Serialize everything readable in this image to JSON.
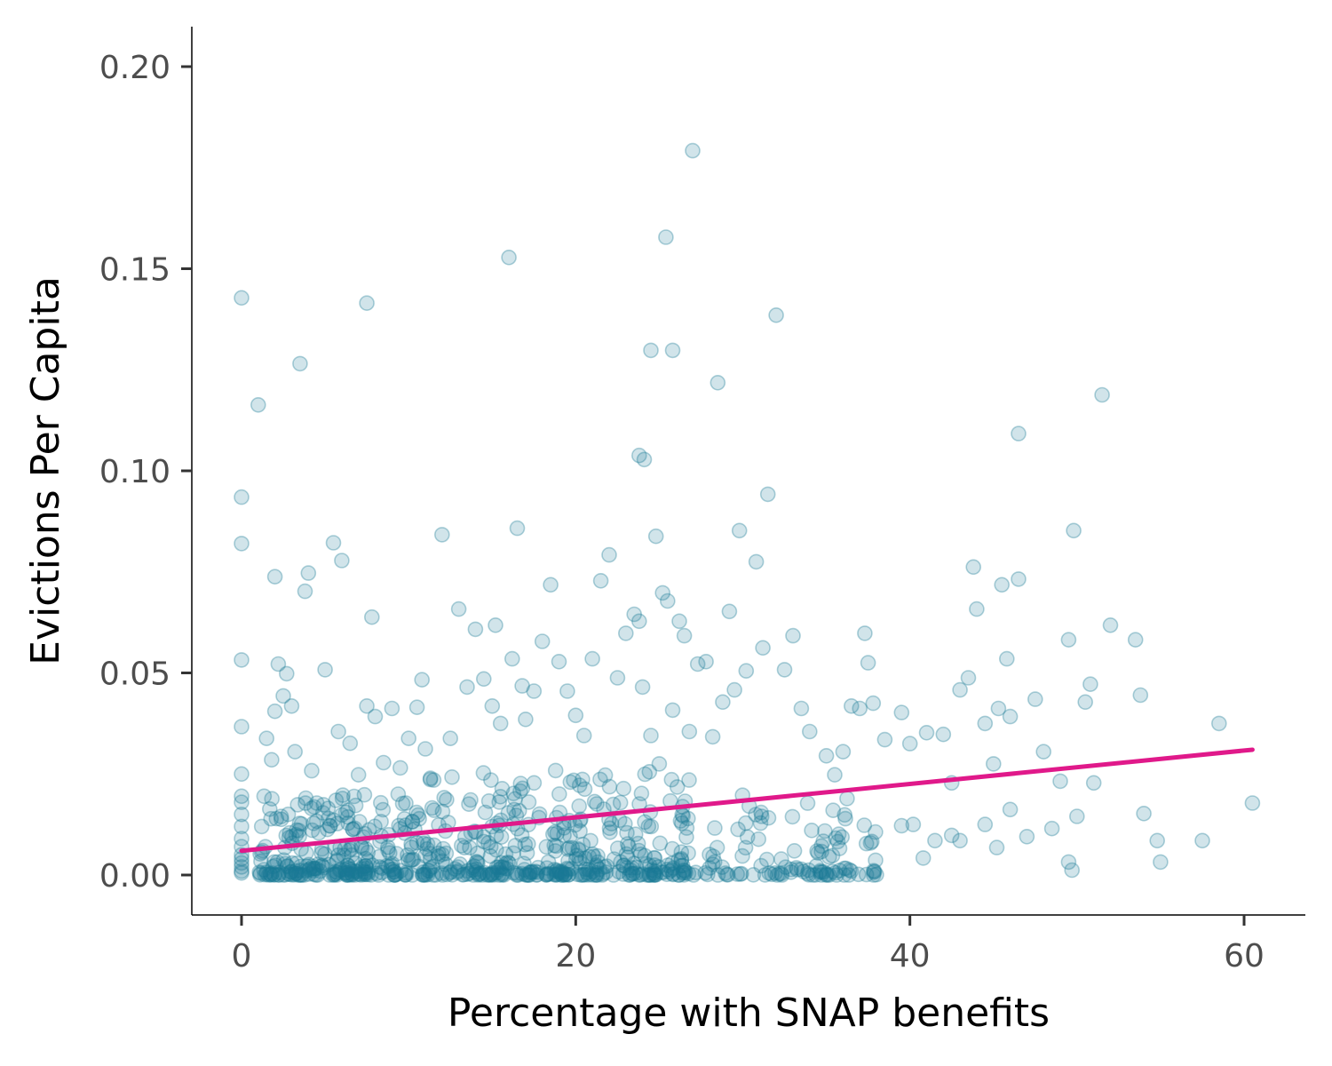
{
  "chart_data": {
    "type": "scatter",
    "title": "",
    "xlabel": "Percentage with SNAP benefits",
    "ylabel": "Evictions Per Capita",
    "xlim": [
      -1.5,
      63
    ],
    "ylim": [
      -0.01,
      0.21
    ],
    "x_ticks": [
      0,
      20,
      40,
      60
    ],
    "x_tick_labels": [
      "0",
      "20",
      "40",
      "60"
    ],
    "y_ticks": [
      0.0,
      0.05,
      0.1,
      0.15,
      0.2
    ],
    "y_tick_labels": [
      "0.00",
      "0.05",
      "0.10",
      "0.15",
      "0.20"
    ],
    "grid": false,
    "legend": "none",
    "point_color": "#1b7a94",
    "point_fill_opacity": 0.2,
    "trend_color": "#e0198a",
    "trend_line": {
      "x": [
        0,
        60.5
      ],
      "y": [
        0.006,
        0.031
      ]
    },
    "series": [
      {
        "values": [
          [
            0,
            0.1428
          ],
          [
            0,
            0.0935
          ],
          [
            0,
            0.082
          ],
          [
            0,
            0.0532
          ],
          [
            0,
            0.0367
          ],
          [
            0,
            0.025
          ],
          [
            0,
            0.0195
          ],
          [
            0,
            0.018
          ],
          [
            0,
            0.015
          ],
          [
            0,
            0.012
          ],
          [
            0,
            0.009
          ],
          [
            0,
            0.007
          ],
          [
            0,
            0.005
          ],
          [
            0,
            0.004
          ],
          [
            0,
            0.003
          ],
          [
            0,
            0.002
          ],
          [
            0,
            0.001
          ],
          [
            0,
            0.0005
          ],
          [
            1.0,
            0.1163
          ],
          [
            1.5,
            0.0338
          ],
          [
            1.8,
            0.0285
          ],
          [
            2.0,
            0.0738
          ],
          [
            2.0,
            0.0405
          ],
          [
            2.2,
            0.0522
          ],
          [
            2.5,
            0.0443
          ],
          [
            2.7,
            0.0498
          ],
          [
            3.0,
            0.0418
          ],
          [
            3.2,
            0.0305
          ],
          [
            3.5,
            0.1265
          ],
          [
            3.8,
            0.0702
          ],
          [
            4.0,
            0.0747
          ],
          [
            4.2,
            0.0258
          ],
          [
            4.5,
            0.0178
          ],
          [
            5.0,
            0.0508
          ],
          [
            5.5,
            0.0822
          ],
          [
            5.8,
            0.0355
          ],
          [
            6.0,
            0.0778
          ],
          [
            6.5,
            0.0326
          ],
          [
            7.0,
            0.0248
          ],
          [
            7.5,
            0.0418
          ],
          [
            8.0,
            0.0392
          ],
          [
            8.5,
            0.0278
          ],
          [
            9.0,
            0.0412
          ],
          [
            7.5,
            0.1415
          ],
          [
            7.8,
            0.0638
          ],
          [
            9.5,
            0.0265
          ],
          [
            10.0,
            0.0338
          ],
          [
            10.5,
            0.0415
          ],
          [
            10.8,
            0.0483
          ],
          [
            11.0,
            0.0312
          ],
          [
            11.5,
            0.0235
          ],
          [
            12.0,
            0.0842
          ],
          [
            12.5,
            0.0338
          ],
          [
            13.0,
            0.0658
          ],
          [
            13.5,
            0.0465
          ],
          [
            14.0,
            0.0608
          ],
          [
            14.5,
            0.0485
          ],
          [
            15.0,
            0.0418
          ],
          [
            15.2,
            0.0618
          ],
          [
            15.5,
            0.0375
          ],
          [
            16.0,
            0.1528
          ],
          [
            16.2,
            0.0535
          ],
          [
            16.5,
            0.0858
          ],
          [
            16.8,
            0.0468
          ],
          [
            17.0,
            0.0385
          ],
          [
            17.5,
            0.0455
          ],
          [
            18.0,
            0.0578
          ],
          [
            18.5,
            0.0718
          ],
          [
            19.0,
            0.0528
          ],
          [
            19.5,
            0.0455
          ],
          [
            20.0,
            0.0395
          ],
          [
            20.5,
            0.0345
          ],
          [
            21.0,
            0.0535
          ],
          [
            21.5,
            0.0728
          ],
          [
            22.0,
            0.0792
          ],
          [
            22.5,
            0.0488
          ],
          [
            23.0,
            0.0598
          ],
          [
            23.5,
            0.0645
          ],
          [
            23.8,
            0.0628
          ],
          [
            24.0,
            0.0465
          ],
          [
            24.5,
            0.0345
          ],
          [
            25.0,
            0.0275
          ],
          [
            23.8,
            0.1038
          ],
          [
            24.1,
            0.1028
          ],
          [
            24.5,
            0.1298
          ],
          [
            24.8,
            0.0838
          ],
          [
            25.2,
            0.0698
          ],
          [
            25.5,
            0.0678
          ],
          [
            25.8,
            0.0408
          ],
          [
            26.2,
            0.0628
          ],
          [
            26.5,
            0.0592
          ],
          [
            26.8,
            0.0355
          ],
          [
            25.4,
            0.1578
          ],
          [
            25.8,
            0.1298
          ],
          [
            27.0,
            0.1792
          ],
          [
            27.3,
            0.0522
          ],
          [
            27.8,
            0.0528
          ],
          [
            28.2,
            0.0342
          ],
          [
            28.5,
            0.1218
          ],
          [
            28.8,
            0.0428
          ],
          [
            29.2,
            0.0652
          ],
          [
            29.5,
            0.0458
          ],
          [
            29.8,
            0.0852
          ],
          [
            30.2,
            0.0505
          ],
          [
            30.8,
            0.0775
          ],
          [
            31.2,
            0.0562
          ],
          [
            31.5,
            0.0942
          ],
          [
            32.0,
            0.1385
          ],
          [
            32.5,
            0.0508
          ],
          [
            33.0,
            0.0592
          ],
          [
            33.5,
            0.0412
          ],
          [
            34.0,
            0.0355
          ],
          [
            35.0,
            0.0295
          ],
          [
            35.5,
            0.0248
          ],
          [
            36.0,
            0.0305
          ],
          [
            36.5,
            0.0418
          ],
          [
            37.0,
            0.0412
          ],
          [
            37.3,
            0.0598
          ],
          [
            37.5,
            0.0525
          ],
          [
            37.8,
            0.0425
          ],
          [
            38.5,
            0.0335
          ],
          [
            39.5,
            0.0402
          ],
          [
            40.0,
            0.0325
          ],
          [
            41.0,
            0.0352
          ],
          [
            42.0,
            0.0348
          ],
          [
            42.5,
            0.0228
          ],
          [
            43.0,
            0.0458
          ],
          [
            43.5,
            0.0488
          ],
          [
            43.8,
            0.0762
          ],
          [
            44.0,
            0.0658
          ],
          [
            44.5,
            0.0375
          ],
          [
            45.0,
            0.0275
          ],
          [
            45.3,
            0.0412
          ],
          [
            45.5,
            0.0718
          ],
          [
            45.8,
            0.0535
          ],
          [
            46.0,
            0.0392
          ],
          [
            46.5,
            0.0732
          ],
          [
            46.5,
            0.1092
          ],
          [
            47.5,
            0.0435
          ],
          [
            48.0,
            0.0305
          ],
          [
            49.0,
            0.0232
          ],
          [
            49.5,
            0.0582
          ],
          [
            49.8,
            0.0852
          ],
          [
            50.5,
            0.0428
          ],
          [
            50.8,
            0.0472
          ],
          [
            51.0,
            0.0228
          ],
          [
            51.5,
            0.1188
          ],
          [
            52.0,
            0.0618
          ],
          [
            53.5,
            0.0582
          ],
          [
            53.8,
            0.0445
          ],
          [
            54.0,
            0.0152
          ],
          [
            55.0,
            0.0032
          ],
          [
            58.5,
            0.0375
          ],
          [
            60.5,
            0.0178
          ],
          [
            39.5,
            0.0122
          ],
          [
            40.2,
            0.0125
          ],
          [
            40.8,
            0.0042
          ],
          [
            41.5,
            0.0085
          ],
          [
            42.5,
            0.0098
          ],
          [
            43.0,
            0.0085
          ],
          [
            44.5,
            0.0125
          ],
          [
            45.2,
            0.0068
          ],
          [
            46.0,
            0.0162
          ],
          [
            47.0,
            0.0095
          ],
          [
            48.5,
            0.0115
          ],
          [
            49.5,
            0.0032
          ],
          [
            49.7,
            0.0012
          ],
          [
            50.0,
            0.0145
          ],
          [
            54.8,
            0.0085
          ],
          [
            57.5,
            0.0085
          ]
        ]
      }
    ],
    "dense_cloud": {
      "note_rows": [
        [
          1,
          9,
          0.0,
          0.02,
          220
        ],
        [
          9,
          20,
          0.0,
          0.026,
          260
        ],
        [
          20,
          27,
          0.0,
          0.028,
          160
        ],
        [
          27,
          38,
          0.0,
          0.02,
          110
        ]
      ]
    }
  }
}
